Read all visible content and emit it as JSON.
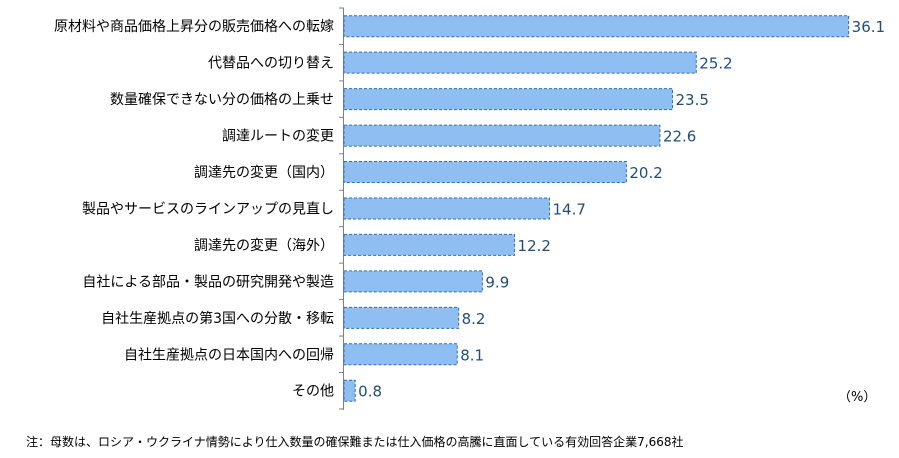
{
  "chart_data": {
    "type": "bar",
    "orientation": "horizontal",
    "categories": [
      "原材料や商品価格上昇分の販売価格への転嫁",
      "代替品への切り替え",
      "数量確保できない分の価格の上乗せ",
      "調達ルートの変更",
      "調達先の変更（国内）",
      "製品やサービスのラインアップの見直し",
      "調達先の変更（海外）",
      "自社による部品・製品の研究開発や製造",
      "自社生産拠点の第3国への分散・移転",
      "自社生産拠点の日本国内への回帰",
      "その他"
    ],
    "values": [
      36.1,
      25.2,
      23.5,
      22.6,
      20.2,
      14.7,
      12.2,
      9.9,
      8.2,
      8.1,
      0.8
    ],
    "value_labels": [
      "36.1",
      "25.2",
      "23.5",
      "22.6",
      "20.2",
      "14.7",
      "12.2",
      "9.9",
      "8.2",
      "8.1",
      "0.8"
    ],
    "unit": "（%）",
    "xlim": [
      0,
      40
    ],
    "grid": false,
    "bar_color": "#8fbff2",
    "bar_border_color": "#2f6fb5",
    "value_label_color": "#1f4e79"
  },
  "note": "注：母数は、ロシア・ウクライナ情勢により仕入数量の確保難または仕入価格の高騰に直面している有効回答企業7,668社"
}
